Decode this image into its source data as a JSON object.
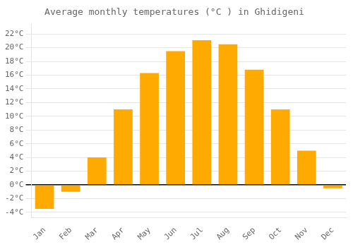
{
  "chart_data": {
    "type": "bar",
    "title": "Average monthly temperatures (°C ) in Ghidigeni",
    "categories": [
      "Jan",
      "Feb",
      "Mar",
      "Apr",
      "May",
      "Jun",
      "Jul",
      "Aug",
      "Sep",
      "Oct",
      "Nov",
      "Dec"
    ],
    "values": [
      -3.5,
      -1.0,
      4.0,
      11.0,
      16.3,
      19.5,
      21.1,
      20.5,
      16.8,
      11.0,
      5.0,
      -0.5
    ],
    "color": "#FFAA00",
    "ylim": [
      -4.8,
      23.5
    ],
    "yticks": [
      {
        "value": -4,
        "label": "-4°C"
      },
      {
        "value": -2,
        "label": "-2°C"
      },
      {
        "value": 0,
        "label": "0°C"
      },
      {
        "value": 2,
        "label": "2°C"
      },
      {
        "value": 4,
        "label": "4°C"
      },
      {
        "value": 6,
        "label": "6°C"
      },
      {
        "value": 8,
        "label": "8°C"
      },
      {
        "value": 10,
        "label": "10°C"
      },
      {
        "value": 12,
        "label": "12°C"
      },
      {
        "value": 14,
        "label": "14°C"
      },
      {
        "value": 16,
        "label": "16°C"
      },
      {
        "value": 18,
        "label": "18°C"
      },
      {
        "value": 20,
        "label": "20°C"
      },
      {
        "value": 22,
        "label": "22°C"
      }
    ],
    "grid": true
  }
}
